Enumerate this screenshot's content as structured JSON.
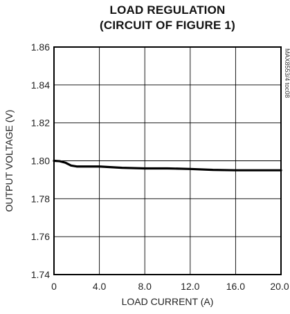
{
  "chart_data": {
    "type": "line",
    "title": [
      "LOAD REGULATION",
      "(CIRCUIT OF FIGURE 1)"
    ],
    "xlabel": "LOAD CURRENT (A)",
    "ylabel": "OUTPUT VOLTAGE (V)",
    "xlim": [
      0,
      20
    ],
    "ylim": [
      1.74,
      1.86
    ],
    "xticks": [
      0,
      4,
      8,
      12,
      16,
      20
    ],
    "xtick_labels": [
      "0",
      "4.0",
      "8.0",
      "12.0",
      "16.0",
      "20.0"
    ],
    "yticks": [
      1.74,
      1.76,
      1.78,
      1.8,
      1.82,
      1.84,
      1.86
    ],
    "ytick_labels": [
      "1.74",
      "1.76",
      "1.78",
      "1.80",
      "1.82",
      "1.84",
      "1.86"
    ],
    "grid": true,
    "side_note": "MAX8553/4 toc08",
    "series": [
      {
        "x": [
          0,
          0.5,
          1.0,
          1.5,
          2.0,
          3.0,
          4.0,
          6.0,
          8.0,
          10.0,
          12.0,
          14.0,
          16.0,
          18.0,
          20.0
        ],
        "y": [
          1.8,
          1.7998,
          1.799,
          1.7975,
          1.797,
          1.797,
          1.797,
          1.7963,
          1.796,
          1.796,
          1.7957,
          1.7952,
          1.795,
          1.795,
          1.795
        ],
        "color": "#000000"
      }
    ]
  }
}
